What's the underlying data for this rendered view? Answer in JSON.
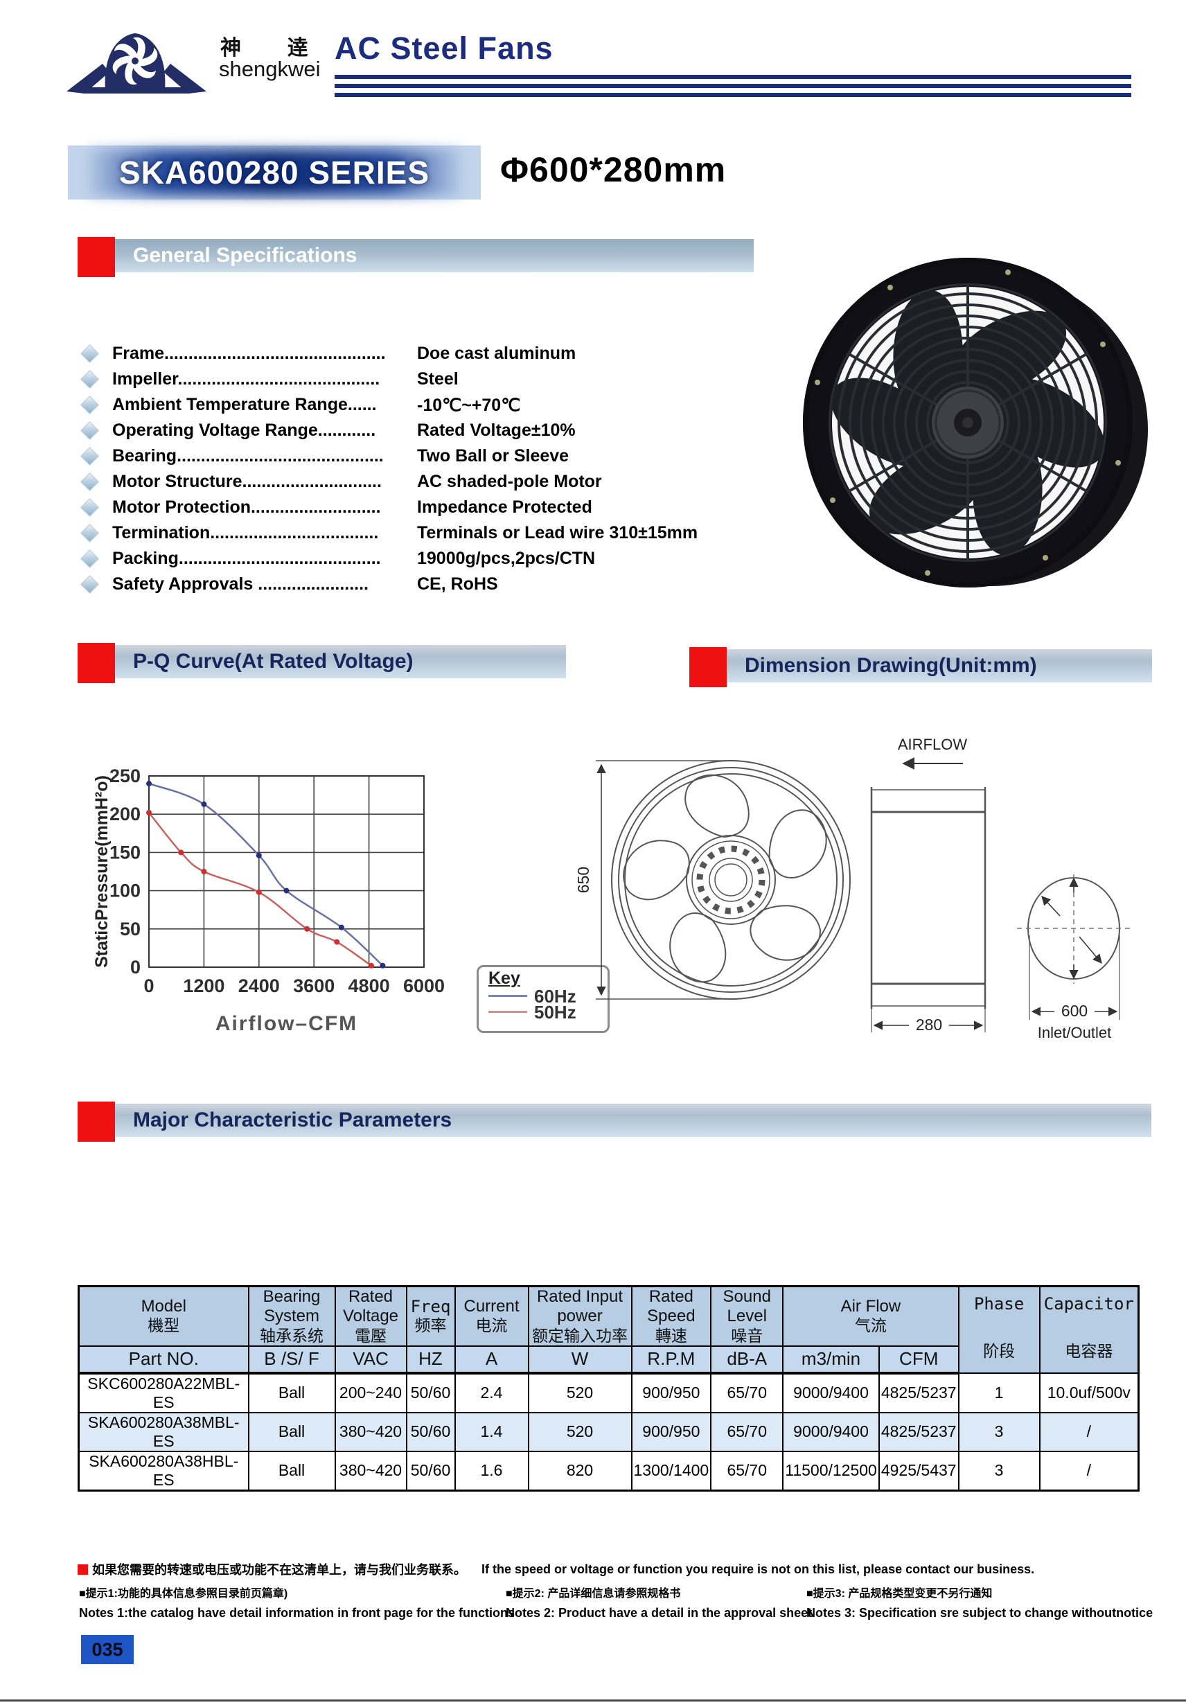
{
  "header": {
    "brand_cn": "神        逹",
    "brand_en": "shengkwei",
    "title": "AC  Steel Fans"
  },
  "series": {
    "name": "SKA600280 SERIES",
    "size": "Φ600*280mm"
  },
  "section_titles": {
    "general_specifications": "General Specifications",
    "pq_curve": "P-Q Curve(At Rated Voltage)",
    "dimension_drawing": "Dimension Drawing(Unit:mm)",
    "parameters": "Major Characteristic Parameters"
  },
  "specs": [
    {
      "label": "Frame..............................................",
      "value": "Doe cast aluminum"
    },
    {
      "label": "Impeller..........................................",
      "value": "Steel"
    },
    {
      "label": "Ambient Temperature Range......",
      "value": "-10℃~+70℃"
    },
    {
      "label": "Operating Voltage Range............",
      "value": "Rated Voltage±10%"
    },
    {
      "label": "Bearing...........................................",
      "value": "Two Ball or Sleeve"
    },
    {
      "label": "Motor Structure.............................",
      "value": "AC shaded-pole Motor"
    },
    {
      "label": "Motor Protection...........................",
      "value": "Impedance Protected"
    },
    {
      "label": "Termination...................................",
      "value": "Terminals or Lead wire 310±15mm"
    },
    {
      "label": "Packing..........................................",
      "value": "19000g/pcs,2pcs/CTN"
    },
    {
      "label": "Safety Approvals .......................",
      "value": "CE, RoHS"
    }
  ],
  "chart_data": {
    "type": "line",
    "title": "P-Q Curve(At Rated Voltage)",
    "xlabel": "Airflow–CFM",
    "ylabel": "StaticPressure(mmH²o)",
    "xlim": [
      0,
      6000
    ],
    "ylim": [
      0,
      250
    ],
    "xticks": [
      0,
      1200,
      2400,
      3600,
      4800,
      6000
    ],
    "yticks": [
      0,
      50,
      100,
      150,
      200,
      250
    ],
    "grid": true,
    "legend_position": "lower-right-outside",
    "legend": {
      "title": "Key",
      "entries": [
        {
          "label": "60Hz",
          "color": "#7c85b5"
        },
        {
          "label": "50Hz",
          "color": "#d98c8a"
        }
      ]
    },
    "series": [
      {
        "name": "60Hz",
        "line_color": "#6971a5",
        "marker_color": "#27307d",
        "points": [
          [
            0,
            240
          ],
          [
            1200,
            213
          ],
          [
            2400,
            146
          ],
          [
            3000,
            100
          ],
          [
            4200,
            52
          ],
          [
            5100,
            2
          ]
        ]
      },
      {
        "name": "50Hz",
        "line_color": "#c66361",
        "marker_color": "#cf2f2f",
        "points": [
          [
            0,
            202
          ],
          [
            700,
            150
          ],
          [
            1200,
            125
          ],
          [
            2400,
            98
          ],
          [
            3450,
            50
          ],
          [
            4100,
            33
          ],
          [
            4850,
            2
          ]
        ]
      }
    ]
  },
  "dimension_drawing": {
    "airflow_label": "AIRFLOW",
    "height_mm": "650",
    "depth_mm": "280",
    "diameter_mm": "600",
    "inlet_outlet_label": "Inlet/Outlet"
  },
  "table": {
    "columns": [
      {
        "en": "Model",
        "cn": "機型",
        "unit": "Part NO."
      },
      {
        "en": "Bearing System",
        "cn": "轴承系统",
        "unit": "B /S/ F"
      },
      {
        "en": "Rated Voltage",
        "cn": "電壓",
        "unit": "VAC"
      },
      {
        "en": "Freq",
        "cn": "频率",
        "unit": "HZ",
        "mono": true
      },
      {
        "en": "Current",
        "cn": "电流",
        "unit": "A"
      },
      {
        "en": "Rated Input power",
        "cn": "额定输入功率",
        "unit": "W"
      },
      {
        "en": "Rated Speed",
        "cn": "轉速",
        "unit": "R.P.M"
      },
      {
        "en": "Sound Level",
        "cn": "噪音",
        "unit": "dB-A"
      },
      {
        "en": "Air Flow",
        "cn": "气流",
        "units": [
          "m3/min",
          "CFM"
        ]
      },
      {
        "en": "Phase",
        "cn": "阶段",
        "mono": true,
        "span_rows": true
      },
      {
        "en": "Capacitor",
        "cn": "电容器",
        "mono": true,
        "span_rows": true
      }
    ],
    "rows": [
      [
        "SKC600280A22MBL-ES",
        "Ball",
        "200~240",
        "50/60",
        "2.4",
        "520",
        "900/950",
        "65/70",
        "9000/9400",
        "4825/5237",
        "1",
        "10.0uf/500v"
      ],
      [
        "SKA600280A38MBL-ES",
        "Ball",
        "380~420",
        "50/60",
        "1.4",
        "520",
        "900/950",
        "65/70",
        "9000/9400",
        "4825/5237",
        "3",
        "/"
      ],
      [
        "SKA600280A38HBL-ES",
        "Ball",
        "380~420",
        "50/60",
        "1.6",
        "820",
        "1300/1400",
        "65/70",
        "11500/12500",
        "4925/5437",
        "3",
        "/"
      ]
    ]
  },
  "notes": {
    "contact_cn": "如果您需要的转速或电压或功能不在这清单上，请与我们业务联系。",
    "contact_en": "If the speed or voltage or function you require is not on this list, please contact our business.",
    "tip1_cn": "■提示1:功能的具体信息参照目录前页篇章)",
    "tip2_cn": "■提示2: 产品详细信息请参照规格书",
    "tip3_cn": "■提示3:  产品规格类型变更不另行通知",
    "note1_en": "Notes 1:the catalog have detail information in front page for the functions",
    "note2_en": "Notes 2: Product have a  detail in the approval sheet",
    "note3_en": "Notes 3: Specification sre subject to change withoutnotice"
  },
  "page_number": "035",
  "colors": {
    "navy": "#1c2d80",
    "banner_red": "#ee1111",
    "page_badge_blue": "#1d55c4",
    "table_header_blue": "#b6cde4",
    "table_stripe_blue": "#dce9f6"
  }
}
